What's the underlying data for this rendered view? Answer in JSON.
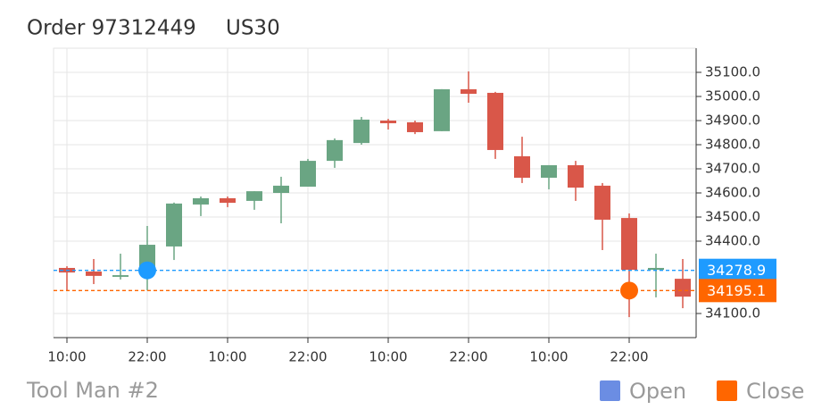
{
  "chart_data": {
    "type": "candlestick",
    "title": "Order 97312449",
    "subtitle": "US30",
    "caption": "Tool Man #2",
    "categories": [
      "10:00",
      null,
      null,
      "22:00",
      null,
      null,
      "10:00",
      null,
      null,
      "22:00",
      null,
      null,
      "10:00",
      null,
      null,
      "22:00",
      null,
      null,
      "10:00",
      null,
      null,
      "22:00",
      null,
      null
    ],
    "open": [
      34289,
      34274,
      34252,
      34289,
      34378,
      34552,
      34578,
      34567,
      34600,
      34626,
      34733,
      34807,
      34900,
      34893,
      34856,
      35030,
      35015,
      34752,
      34663,
      34715,
      34630,
      34496,
      34281,
      34244
    ],
    "high": [
      34296,
      34326,
      34348,
      34463,
      34560,
      34585,
      34585,
      34607,
      34667,
      34741,
      34826,
      34915,
      34907,
      34900,
      35030,
      35104,
      35019,
      34833,
      34715,
      34733,
      34641,
      34515,
      34348,
      34326
    ],
    "low": [
      34196,
      34222,
      34241,
      34196,
      34322,
      34504,
      34541,
      34530,
      34474,
      34626,
      34704,
      34800,
      34863,
      34844,
      34856,
      34974,
      34741,
      34641,
      34615,
      34567,
      34363,
      34085,
      34167,
      34122
    ],
    "close": [
      34270,
      34256,
      34259,
      34385,
      34556,
      34578,
      34559,
      34607,
      34630,
      34733,
      34819,
      34904,
      34889,
      34852,
      35030,
      35011,
      34778,
      34663,
      34715,
      34622,
      34489,
      34281,
      34289,
      34170
    ],
    "up_color": "#6aa583",
    "down_color": "#d95749",
    "levels": [
      {
        "name": "Open",
        "value": 34278.9,
        "index": 3,
        "color": "#1e9bff"
      },
      {
        "name": "Close",
        "value": 34195.1,
        "index": 21,
        "color": "#ff6600"
      }
    ],
    "legend_colors": [
      "#6b8de3",
      "#ff6600"
    ],
    "ylim": [
      34000,
      35200
    ],
    "yticks": [
      {
        "value": 34100,
        "label": "34100.0"
      },
      {
        "value": 34400,
        "label": "34400.0"
      },
      {
        "value": 34500,
        "label": "34500.0"
      },
      {
        "value": 34600,
        "label": "34600.0"
      },
      {
        "value": 34700,
        "label": "34700.0"
      },
      {
        "value": 34800,
        "label": "34800.0"
      },
      {
        "value": 34900,
        "label": "34900.0"
      },
      {
        "value": 35000,
        "label": "35000.0"
      },
      {
        "value": 35100,
        "label": "35100.0"
      }
    ],
    "grid": true
  }
}
